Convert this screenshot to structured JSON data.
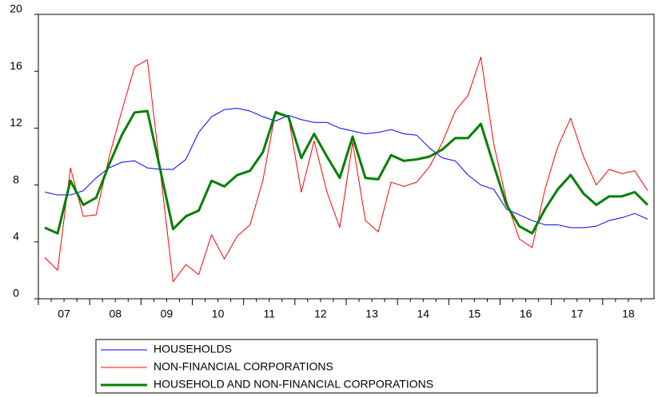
{
  "chart_data": {
    "type": "line",
    "categories": [
      null,
      "07",
      null,
      null,
      null,
      "08",
      null,
      null,
      null,
      "09",
      null,
      null,
      null,
      "10",
      null,
      null,
      null,
      "11",
      null,
      null,
      null,
      "12",
      null,
      null,
      null,
      "13",
      null,
      null,
      null,
      "14",
      null,
      null,
      null,
      "15",
      null,
      null,
      null,
      "16",
      null,
      null,
      null,
      "17",
      null,
      null,
      null,
      "18",
      null,
      null
    ],
    "series": [
      {
        "name": "HOUSEHOLDS",
        "color": "#0000ff",
        "width": 1,
        "values": [
          7.5,
          7.3,
          7.3,
          7.6,
          8.5,
          9.2,
          9.6,
          9.7,
          9.2,
          9.1,
          9.1,
          9.8,
          11.7,
          12.8,
          13.3,
          13.4,
          13.2,
          12.8,
          12.5,
          12.9,
          12.6,
          12.4,
          12.4,
          12.0,
          11.8,
          11.6,
          11.7,
          11.9,
          11.6,
          11.5,
          10.6,
          9.9,
          9.7,
          8.7,
          8.0,
          7.7,
          6.3,
          5.9,
          5.5,
          5.2,
          5.2,
          5.0,
          5.0,
          5.1,
          5.5,
          5.7,
          6.0,
          5.6
        ]
      },
      {
        "name": "NON-FINANCIAL CORPORATIONS",
        "color": "#ff0000",
        "width": 1,
        "values": [
          2.9,
          2.0,
          9.2,
          5.8,
          5.9,
          9.9,
          13.2,
          16.3,
          16.8,
          9.0,
          1.2,
          2.4,
          1.7,
          4.5,
          2.8,
          4.4,
          5.2,
          8.3,
          13.2,
          12.8,
          7.5,
          11.1,
          7.5,
          5.0,
          11.0,
          5.5,
          4.7,
          8.2,
          7.9,
          8.2,
          9.3,
          11.0,
          13.2,
          14.3,
          17.0,
          10.9,
          6.9,
          4.2,
          3.6,
          7.7,
          10.7,
          12.7,
          10.0,
          8.0,
          9.1,
          8.8,
          9.0,
          7.6
        ]
      },
      {
        "name": "HOUSEHOLD AND NON-FINANCIAL CORPORATIONS",
        "color": "#008000",
        "width": 3,
        "values": [
          5.0,
          4.6,
          8.3,
          6.6,
          7.1,
          9.4,
          11.5,
          13.1,
          13.2,
          9.1,
          4.9,
          5.8,
          6.2,
          8.3,
          7.9,
          8.7,
          9.0,
          10.3,
          13.1,
          12.8,
          9.9,
          11.6,
          10.0,
          8.5,
          11.4,
          8.5,
          8.4,
          10.1,
          9.7,
          9.8,
          10.0,
          10.5,
          11.3,
          11.3,
          12.3,
          9.4,
          6.6,
          5.1,
          4.6,
          6.3,
          7.7,
          8.7,
          7.4,
          6.6,
          7.2,
          7.2,
          7.5,
          6.6
        ]
      }
    ],
    "ylim": [
      0,
      20
    ],
    "yticks": [
      0,
      4,
      8,
      12,
      16,
      20
    ]
  }
}
